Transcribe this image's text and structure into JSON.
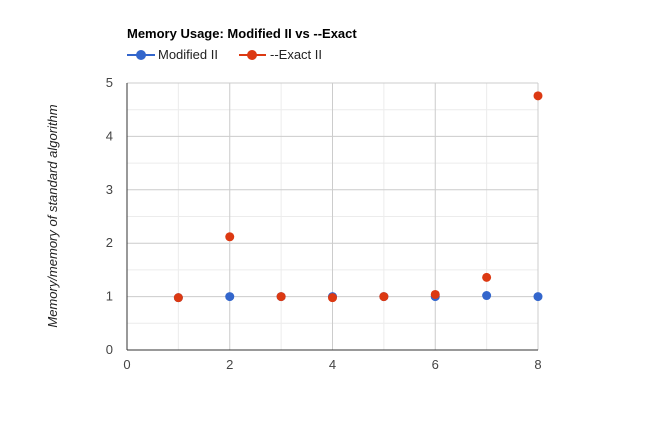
{
  "chart_data": {
    "type": "scatter",
    "title": "Memory Usage: Modified II vs --Exact",
    "xlabel": "",
    "ylabel": "Memory/memory of standard algorithm",
    "xlim": [
      0,
      8
    ],
    "ylim": [
      0,
      5
    ],
    "xticks": [
      "0",
      "2",
      "4",
      "6",
      "8"
    ],
    "yticks": [
      "0",
      "1",
      "2",
      "3",
      "4",
      "5"
    ],
    "grid": true,
    "legend_position": "top",
    "series": [
      {
        "name": "Modified II",
        "color": "#3366cc",
        "x": [
          1,
          2,
          3,
          4,
          5,
          6,
          7,
          8
        ],
        "y": [
          0.98,
          1.0,
          1.0,
          1.0,
          1.0,
          1.0,
          1.02,
          1.0
        ]
      },
      {
        "name": "--Exact  II",
        "color": "#dc3912",
        "x": [
          1,
          2,
          3,
          4,
          5,
          6,
          7,
          8
        ],
        "y": [
          0.98,
          2.12,
          1.0,
          0.98,
          1.0,
          1.04,
          1.36,
          4.76
        ]
      }
    ]
  }
}
